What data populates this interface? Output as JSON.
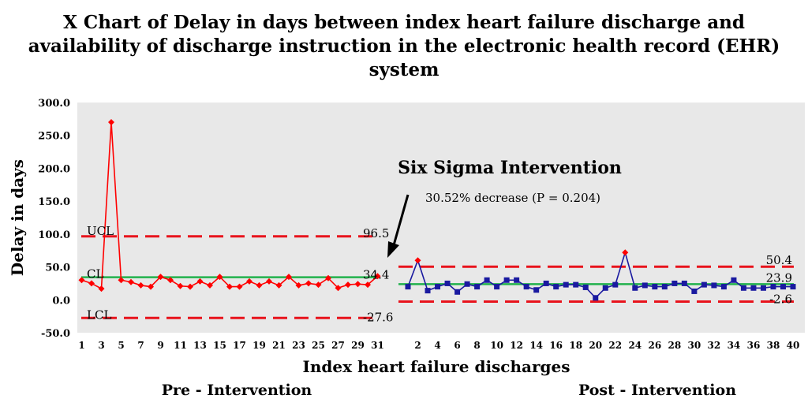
{
  "title": {
    "line1": "X Chart of Delay in days between index heart failure discharge and",
    "line2": "availability of discharge instruction in the electronic health record (EHR)",
    "line3": "system"
  },
  "chart_data": {
    "type": "line",
    "ylabel": "Delay in days",
    "xlabel": "Index heart failure discharges",
    "ylim": [
      -50,
      300
    ],
    "yticks": [
      "300.0",
      "250.0",
      "200.0",
      "150.0",
      "100.0",
      "50.0",
      "0.0",
      "-50.0"
    ],
    "grid": false,
    "annotation": {
      "title": "Six Sigma Intervention",
      "subtitle": "30.52% decrease (P = 0.204)"
    },
    "colors": {
      "plot_bg": "#e8e8e8",
      "pre": "#ff0000",
      "post": "#1a1aa0",
      "limit": "#e8131c",
      "center": "#22b24c",
      "out_of_control": "#ff0000"
    },
    "phases": [
      {
        "name": "Pre - Intervention",
        "x": [
          1,
          2,
          3,
          4,
          5,
          6,
          7,
          8,
          9,
          10,
          11,
          12,
          13,
          14,
          15,
          16,
          17,
          18,
          19,
          20,
          21,
          22,
          23,
          24,
          25,
          26,
          27,
          28,
          29,
          30,
          31
        ],
        "x_tick_labels": [
          "1",
          "3",
          "5",
          "7",
          "9",
          "11",
          "13",
          "15",
          "17",
          "19",
          "21",
          "23",
          "25",
          "27",
          "29",
          "31"
        ],
        "values": [
          30,
          25,
          17,
          270,
          30,
          27,
          22,
          20,
          35,
          30,
          21,
          20,
          28,
          22,
          35,
          20,
          20,
          28,
          22,
          28,
          22,
          35,
          22,
          25,
          23,
          33,
          18,
          23,
          24,
          23,
          36
        ],
        "ucl": 96.5,
        "cl": 34.4,
        "lcl": -27.6,
        "ucl_value_label": "96.5",
        "cl_value_label": "34.4",
        "lcl_value_label": "-27.6",
        "limit_names": [
          "UCL",
          "CL",
          "LCL"
        ]
      },
      {
        "name": "Post - Intervention",
        "x": [
          1,
          2,
          3,
          4,
          5,
          6,
          7,
          8,
          9,
          10,
          11,
          12,
          13,
          14,
          15,
          16,
          17,
          18,
          19,
          20,
          21,
          22,
          23,
          24,
          25,
          26,
          27,
          28,
          29,
          30,
          31,
          32,
          33,
          34,
          35,
          36,
          37,
          38,
          39,
          40
        ],
        "x_tick_labels": [
          "2",
          "4",
          "6",
          "8",
          "10",
          "12",
          "14",
          "16",
          "18",
          "20",
          "22",
          "24",
          "26",
          "28",
          "30",
          "32",
          "34",
          "36",
          "38",
          "40"
        ],
        "values": [
          20,
          60,
          14,
          20,
          25,
          12,
          24,
          20,
          30,
          20,
          30,
          30,
          20,
          15,
          25,
          20,
          23,
          23,
          19,
          3,
          18,
          23,
          72,
          18,
          22,
          20,
          20,
          25,
          25,
          13,
          23,
          22,
          20,
          30,
          18,
          18,
          18,
          20,
          20,
          20
        ],
        "ucl": 50.4,
        "cl": 23.9,
        "lcl": -2.6,
        "ucl_value_label": "50.4",
        "cl_value_label": "23.9",
        "lcl_value_label": "-2.6"
      }
    ]
  }
}
